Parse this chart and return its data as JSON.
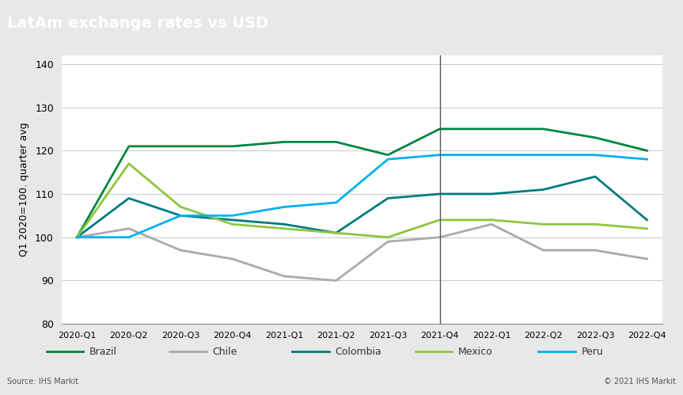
{
  "title": "LatAm exchange rates vs USD",
  "ylabel": "Q1 2020=100. quarter avg",
  "xlabel": "",
  "title_bg_color": "#808080",
  "title_text_color": "#ffffff",
  "plot_bg_color": "#ffffff",
  "fig_bg_color": "#e8e8e8",
  "ylim": [
    80,
    142
  ],
  "yticks": [
    80,
    90,
    100,
    110,
    120,
    130,
    140
  ],
  "source_text": "Source: IHS Markit",
  "copyright_text": "© 2021 IHS Markit",
  "vertical_line_x": 7,
  "categories": [
    "2020-Q1",
    "2020-Q2",
    "2020-Q3",
    "2020-Q4",
    "2021-Q1",
    "2021-Q2",
    "2021-Q3",
    "2021-Q4",
    "2022-Q1",
    "2022-Q2",
    "2022-Q3",
    "2022-Q4"
  ],
  "series": {
    "Brazil": {
      "color": "#00853f",
      "values": [
        100,
        121,
        121,
        121,
        122,
        122,
        119,
        125,
        125,
        125,
        123,
        120
      ]
    },
    "Chile": {
      "color": "#aaaaaa",
      "values": [
        100,
        102,
        97,
        95,
        91,
        90,
        99,
        100,
        103,
        97,
        97,
        95
      ]
    },
    "Colombia": {
      "color": "#007b7f",
      "values": [
        100,
        109,
        105,
        104,
        103,
        101,
        109,
        110,
        110,
        111,
        114,
        104
      ]
    },
    "Mexico": {
      "color": "#8dc63f",
      "values": [
        100,
        117,
        107,
        103,
        102,
        101,
        100,
        104,
        104,
        103,
        103,
        102
      ]
    },
    "Peru": {
      "color": "#00b0f0",
      "values": [
        100,
        100,
        105,
        105,
        107,
        108,
        118,
        119,
        119,
        119,
        119,
        118
      ]
    }
  },
  "legend_order": [
    "Brazil",
    "Chile",
    "Colombia",
    "Mexico",
    "Peru"
  ]
}
